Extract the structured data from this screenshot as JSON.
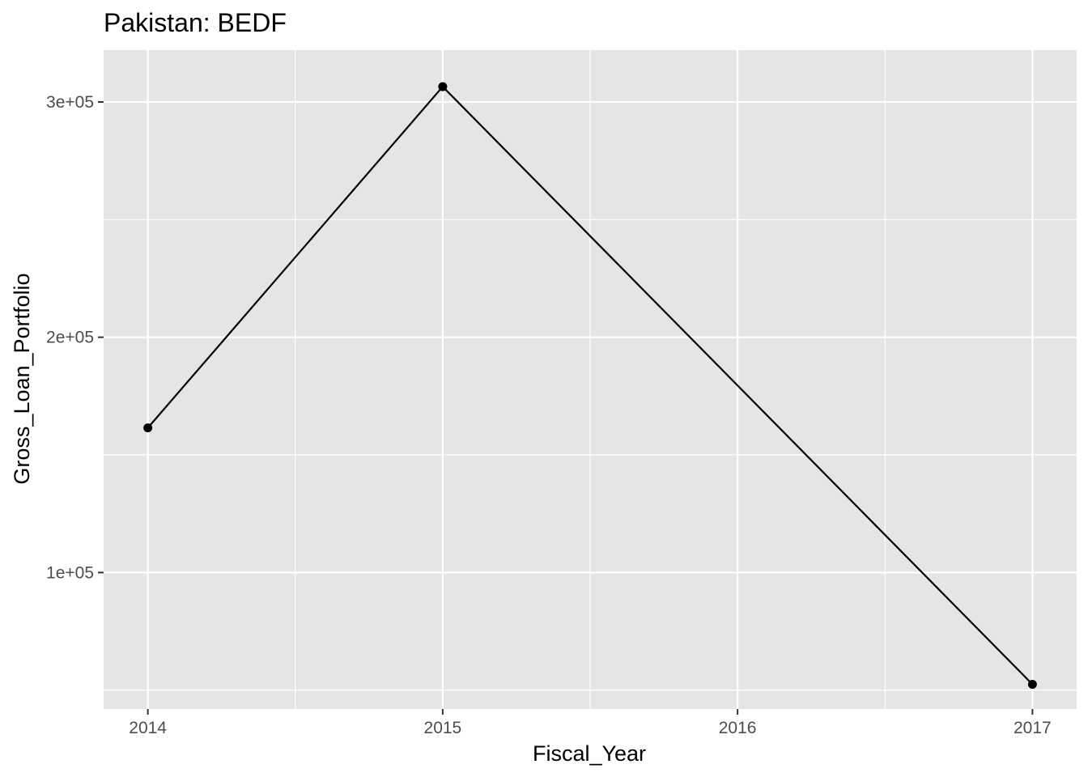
{
  "chart_data": {
    "type": "line",
    "title": "Pakistan:  BEDF",
    "xlabel": "Fiscal_Year",
    "ylabel": "Gross_Loan_Portfolio",
    "x": [
      2014,
      2015,
      2016,
      2017
    ],
    "series": [
      {
        "x": [
          2014,
          2015,
          2017
        ],
        "values": [
          161500,
          306500,
          52500
        ]
      }
    ],
    "xticks": [
      "2014",
      "2015",
      "2016",
      "2017"
    ],
    "yticks": [
      "1e+05",
      "2e+05",
      "3e+05"
    ],
    "ytick_values": [
      100000,
      200000,
      300000
    ],
    "xlim": [
      2013.85,
      2017.15
    ],
    "ylim": [
      42000,
      322000
    ],
    "grid": true,
    "colors": {
      "panel": "#e5e5e5",
      "grid": "#ffffff",
      "line": "#000000",
      "tick_text": "#4d4d4d",
      "tick_mark": "#333333"
    }
  }
}
